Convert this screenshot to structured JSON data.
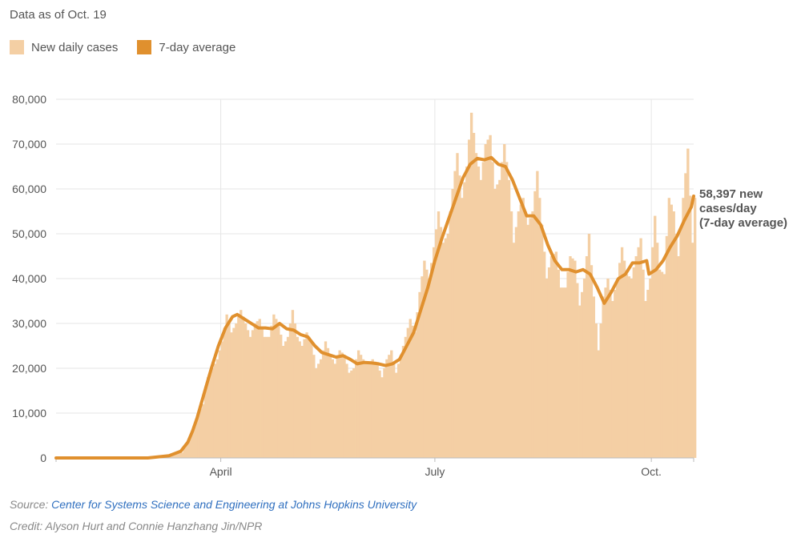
{
  "header": {
    "data_as_of": "Data as of Oct. 19"
  },
  "legend": {
    "items": [
      {
        "label": "New daily cases",
        "color": "#f4cfa4"
      },
      {
        "label": "7-day average",
        "color": "#e0902e"
      }
    ]
  },
  "annotation": {
    "line1": "58,397 new",
    "line2": "cases/day",
    "line3": "(7-day average)"
  },
  "footer": {
    "source_label": "Source: ",
    "source_link": "Center for Systems Science and Engineering at Johns Hopkins University",
    "credit": "Credit: Alyson Hurt and Connie Hanzhang Jin/NPR"
  },
  "chart_data": {
    "type": "bar",
    "x_start": "2020-01-22",
    "x_end": "2020-10-19",
    "xticks": [
      {
        "label": "April",
        "date": "2020-04-01"
      },
      {
        "label": "July",
        "date": "2020-07-01"
      },
      {
        "label": "Oct.",
        "date": "2020-10-01"
      }
    ],
    "yticks": [
      "0",
      "10,000",
      "20,000",
      "30,000",
      "40,000",
      "50,000",
      "60,000",
      "70,000",
      "80,000"
    ],
    "ylim": [
      0,
      80000
    ],
    "grid": true,
    "series": [
      {
        "name": "New daily cases",
        "type": "bar",
        "color": "#f4cfa4",
        "points": [
          [
            "2020-01-22",
            0
          ],
          [
            "2020-03-01",
            0
          ],
          [
            "2020-03-10",
            500
          ],
          [
            "2020-03-15",
            1200
          ],
          [
            "2020-03-18",
            4000
          ],
          [
            "2020-03-20",
            7000
          ],
          [
            "2020-03-22",
            10000
          ],
          [
            "2020-03-24",
            12000
          ],
          [
            "2020-03-26",
            18000
          ],
          [
            "2020-03-28",
            20000
          ],
          [
            "2020-03-30",
            22000
          ],
          [
            "2020-04-01",
            26000
          ],
          [
            "2020-04-03",
            32000
          ],
          [
            "2020-04-05",
            28000
          ],
          [
            "2020-04-07",
            30000
          ],
          [
            "2020-04-09",
            33000
          ],
          [
            "2020-04-11",
            30000
          ],
          [
            "2020-04-13",
            27000
          ],
          [
            "2020-04-15",
            30000
          ],
          [
            "2020-04-17",
            31000
          ],
          [
            "2020-04-19",
            27000
          ],
          [
            "2020-04-21",
            27000
          ],
          [
            "2020-04-23",
            32000
          ],
          [
            "2020-04-25",
            30000
          ],
          [
            "2020-04-27",
            25000
          ],
          [
            "2020-04-29",
            27000
          ],
          [
            "2020-05-01",
            33000
          ],
          [
            "2020-05-03",
            27000
          ],
          [
            "2020-05-05",
            25000
          ],
          [
            "2020-05-07",
            28000
          ],
          [
            "2020-05-09",
            26000
          ],
          [
            "2020-05-11",
            20000
          ],
          [
            "2020-05-13",
            22000
          ],
          [
            "2020-05-15",
            26000
          ],
          [
            "2020-05-17",
            23000
          ],
          [
            "2020-05-19",
            21000
          ],
          [
            "2020-05-21",
            24000
          ],
          [
            "2020-05-23",
            23000
          ],
          [
            "2020-05-25",
            19000
          ],
          [
            "2020-05-27",
            20000
          ],
          [
            "2020-05-29",
            24000
          ],
          [
            "2020-05-31",
            22000
          ],
          [
            "2020-06-02",
            21000
          ],
          [
            "2020-06-04",
            22000
          ],
          [
            "2020-06-06",
            21000
          ],
          [
            "2020-06-08",
            18000
          ],
          [
            "2020-06-10",
            22000
          ],
          [
            "2020-06-12",
            24000
          ],
          [
            "2020-06-14",
            19000
          ],
          [
            "2020-06-16",
            23000
          ],
          [
            "2020-06-18",
            27000
          ],
          [
            "2020-06-20",
            31000
          ],
          [
            "2020-06-22",
            28000
          ],
          [
            "2020-06-24",
            37000
          ],
          [
            "2020-06-26",
            44000
          ],
          [
            "2020-06-28",
            40000
          ],
          [
            "2020-06-30",
            47000
          ],
          [
            "2020-07-02",
            55000
          ],
          [
            "2020-07-04",
            48000
          ],
          [
            "2020-07-06",
            50000
          ],
          [
            "2020-07-08",
            60000
          ],
          [
            "2020-07-10",
            68000
          ],
          [
            "2020-07-12",
            58000
          ],
          [
            "2020-07-14",
            65000
          ],
          [
            "2020-07-16",
            77000
          ],
          [
            "2020-07-18",
            68000
          ],
          [
            "2020-07-20",
            62000
          ],
          [
            "2020-07-22",
            70000
          ],
          [
            "2020-07-24",
            72000
          ],
          [
            "2020-07-26",
            60000
          ],
          [
            "2020-07-28",
            62000
          ],
          [
            "2020-07-30",
            70000
          ],
          [
            "2020-08-01",
            62000
          ],
          [
            "2020-08-03",
            48000
          ],
          [
            "2020-08-05",
            55000
          ],
          [
            "2020-08-07",
            58000
          ],
          [
            "2020-08-09",
            52000
          ],
          [
            "2020-08-11",
            55000
          ],
          [
            "2020-08-13",
            64000
          ],
          [
            "2020-08-15",
            52000
          ],
          [
            "2020-08-17",
            40000
          ],
          [
            "2020-08-19",
            45000
          ],
          [
            "2020-08-21",
            46000
          ],
          [
            "2020-08-23",
            38000
          ],
          [
            "2020-08-25",
            38000
          ],
          [
            "2020-08-27",
            45000
          ],
          [
            "2020-08-29",
            44000
          ],
          [
            "2020-08-31",
            34000
          ],
          [
            "2020-09-02",
            40000
          ],
          [
            "2020-09-04",
            50000
          ],
          [
            "2020-09-06",
            36000
          ],
          [
            "2020-09-08",
            24000
          ],
          [
            "2020-09-10",
            36000
          ],
          [
            "2020-09-12",
            40000
          ],
          [
            "2020-09-14",
            35000
          ],
          [
            "2020-09-16",
            40000
          ],
          [
            "2020-09-18",
            47000
          ],
          [
            "2020-09-20",
            41000
          ],
          [
            "2020-09-22",
            40000
          ],
          [
            "2020-09-24",
            45000
          ],
          [
            "2020-09-26",
            49000
          ],
          [
            "2020-09-28",
            35000
          ],
          [
            "2020-09-30",
            40000
          ],
          [
            "2020-10-02",
            54000
          ],
          [
            "2020-10-04",
            42000
          ],
          [
            "2020-10-06",
            41000
          ],
          [
            "2020-10-08",
            58000
          ],
          [
            "2020-10-10",
            55000
          ],
          [
            "2020-10-12",
            45000
          ],
          [
            "2020-10-14",
            58000
          ],
          [
            "2020-10-16",
            69000
          ],
          [
            "2020-10-18",
            48000
          ],
          [
            "2020-10-19",
            58000
          ]
        ]
      },
      {
        "name": "7-day average",
        "type": "line",
        "color": "#e0902e",
        "points": [
          [
            "2020-01-22",
            0
          ],
          [
            "2020-03-01",
            0
          ],
          [
            "2020-03-10",
            500
          ],
          [
            "2020-03-15",
            1500
          ],
          [
            "2020-03-18",
            3500
          ],
          [
            "2020-03-20",
            6000
          ],
          [
            "2020-03-22",
            9000
          ],
          [
            "2020-03-25",
            14500
          ],
          [
            "2020-03-28",
            20000
          ],
          [
            "2020-03-31",
            25000
          ],
          [
            "2020-04-03",
            29000
          ],
          [
            "2020-04-06",
            31500
          ],
          [
            "2020-04-08",
            32000
          ],
          [
            "2020-04-11",
            31000
          ],
          [
            "2020-04-14",
            30000
          ],
          [
            "2020-04-17",
            29000
          ],
          [
            "2020-04-20",
            29000
          ],
          [
            "2020-04-23",
            28800
          ],
          [
            "2020-04-26",
            30000
          ],
          [
            "2020-04-29",
            28800
          ],
          [
            "2020-05-02",
            28500
          ],
          [
            "2020-05-05",
            27500
          ],
          [
            "2020-05-08",
            27000
          ],
          [
            "2020-05-11",
            25000
          ],
          [
            "2020-05-14",
            23500
          ],
          [
            "2020-05-17",
            23000
          ],
          [
            "2020-05-20",
            22500
          ],
          [
            "2020-05-23",
            22800
          ],
          [
            "2020-05-26",
            22000
          ],
          [
            "2020-05-29",
            21000
          ],
          [
            "2020-06-01",
            21300
          ],
          [
            "2020-06-04",
            21200
          ],
          [
            "2020-06-07",
            21000
          ],
          [
            "2020-06-10",
            20600
          ],
          [
            "2020-06-13",
            21000
          ],
          [
            "2020-06-16",
            22000
          ],
          [
            "2020-06-19",
            25000
          ],
          [
            "2020-06-22",
            28000
          ],
          [
            "2020-06-25",
            33000
          ],
          [
            "2020-06-28",
            38000
          ],
          [
            "2020-07-01",
            44000
          ],
          [
            "2020-07-04",
            49000
          ],
          [
            "2020-07-07",
            53500
          ],
          [
            "2020-07-10",
            58000
          ],
          [
            "2020-07-13",
            62500
          ],
          [
            "2020-07-16",
            65500
          ],
          [
            "2020-07-19",
            66800
          ],
          [
            "2020-07-22",
            66500
          ],
          [
            "2020-07-25",
            67000
          ],
          [
            "2020-07-28",
            65500
          ],
          [
            "2020-07-31",
            65000
          ],
          [
            "2020-08-03",
            62000
          ],
          [
            "2020-08-06",
            58000
          ],
          [
            "2020-08-09",
            54000
          ],
          [
            "2020-08-12",
            54000
          ],
          [
            "2020-08-15",
            52000
          ],
          [
            "2020-08-18",
            47500
          ],
          [
            "2020-08-21",
            44000
          ],
          [
            "2020-08-24",
            42000
          ],
          [
            "2020-08-27",
            42000
          ],
          [
            "2020-08-30",
            41500
          ],
          [
            "2020-09-02",
            42000
          ],
          [
            "2020-09-05",
            41000
          ],
          [
            "2020-09-08",
            38000
          ],
          [
            "2020-09-11",
            34500
          ],
          [
            "2020-09-14",
            37000
          ],
          [
            "2020-09-17",
            40000
          ],
          [
            "2020-09-20",
            41000
          ],
          [
            "2020-09-23",
            43500
          ],
          [
            "2020-09-26",
            43500
          ],
          [
            "2020-09-29",
            44000
          ],
          [
            "2020-09-30",
            41000
          ],
          [
            "2020-10-03",
            42000
          ],
          [
            "2020-10-06",
            44000
          ],
          [
            "2020-10-09",
            47000
          ],
          [
            "2020-10-12",
            49500
          ],
          [
            "2020-10-15",
            53000
          ],
          [
            "2020-10-18",
            56000
          ],
          [
            "2020-10-19",
            58397
          ]
        ]
      }
    ]
  }
}
